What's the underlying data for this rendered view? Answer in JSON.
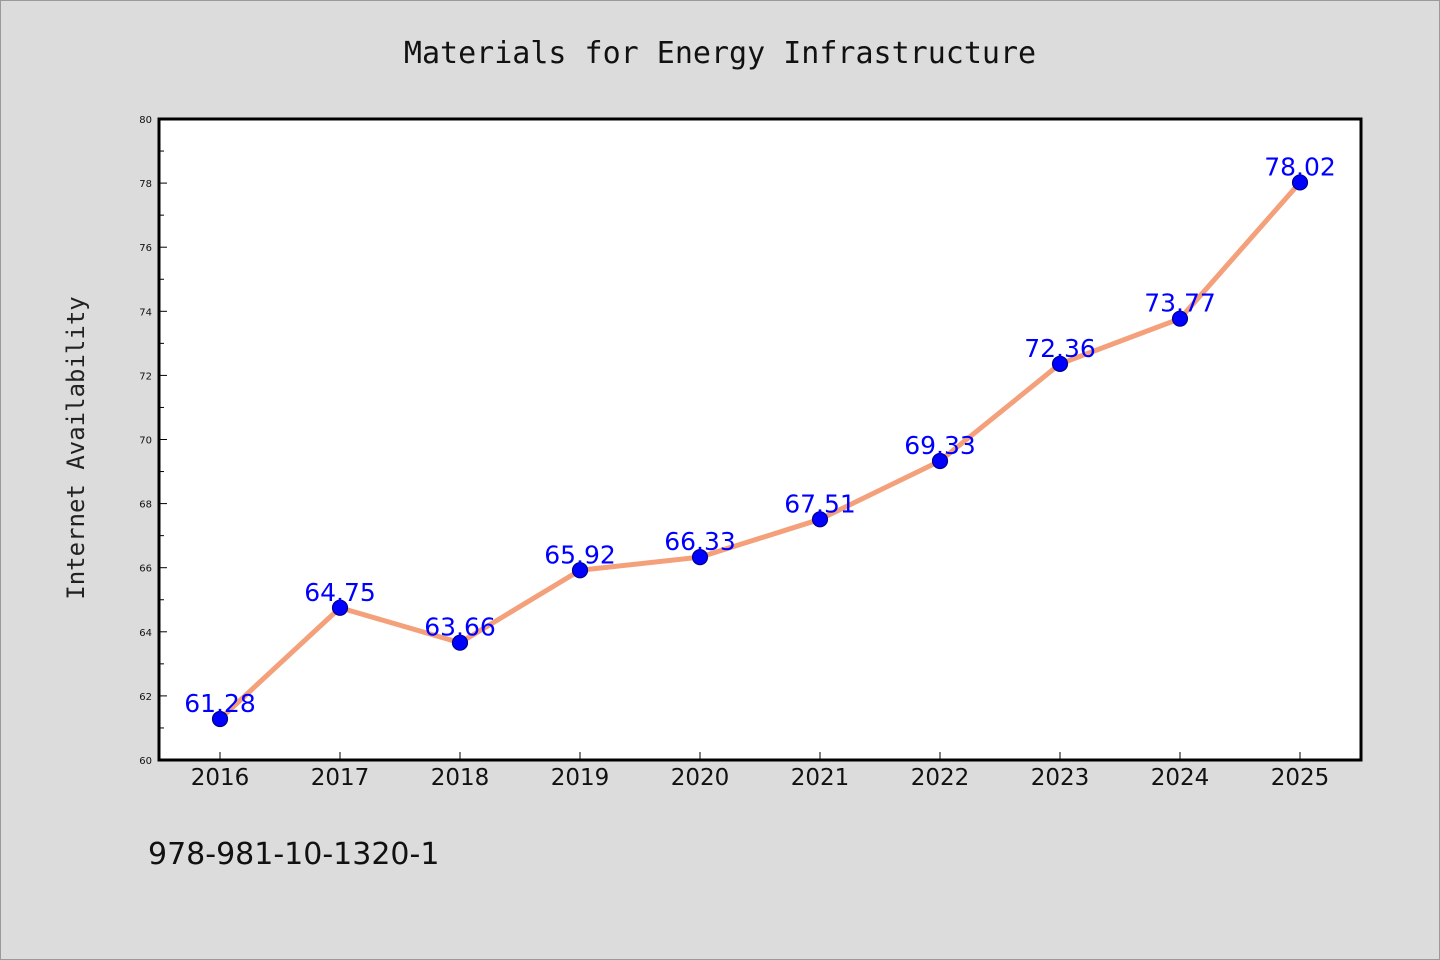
{
  "chart_data": {
    "type": "line",
    "title": "Materials for Energy Infrastructure",
    "xlabel": "",
    "ylabel": "Internet Availability",
    "categories": [
      "2016",
      "2017",
      "2018",
      "2019",
      "2020",
      "2021",
      "2022",
      "2023",
      "2024",
      "2025"
    ],
    "series": [
      {
        "values": [
          61.28,
          64.75,
          63.66,
          65.92,
          66.33,
          67.51,
          69.33,
          72.36,
          73.77,
          78.02
        ],
        "data_labels": [
          "61.28",
          "64.75",
          "63.66",
          "65.92",
          "66.33",
          "67.51",
          "69.33",
          "72.36",
          "73.77",
          "78.02"
        ]
      }
    ],
    "ylim": [
      60,
      80
    ],
    "y_ticks": [
      "60",
      "62",
      "64",
      "66",
      "68",
      "70",
      "72",
      "74",
      "76",
      "78",
      "80"
    ],
    "grid": false,
    "colors": {
      "line": "#f4a07a",
      "marker": "#0000ff",
      "marker_edge": "#00008b",
      "data_label": "#0000ff",
      "plot_background": "#ffffff",
      "page_background": "#dcdcdc"
    }
  },
  "footer": {
    "isbn": "978-981-10-1320-1"
  }
}
